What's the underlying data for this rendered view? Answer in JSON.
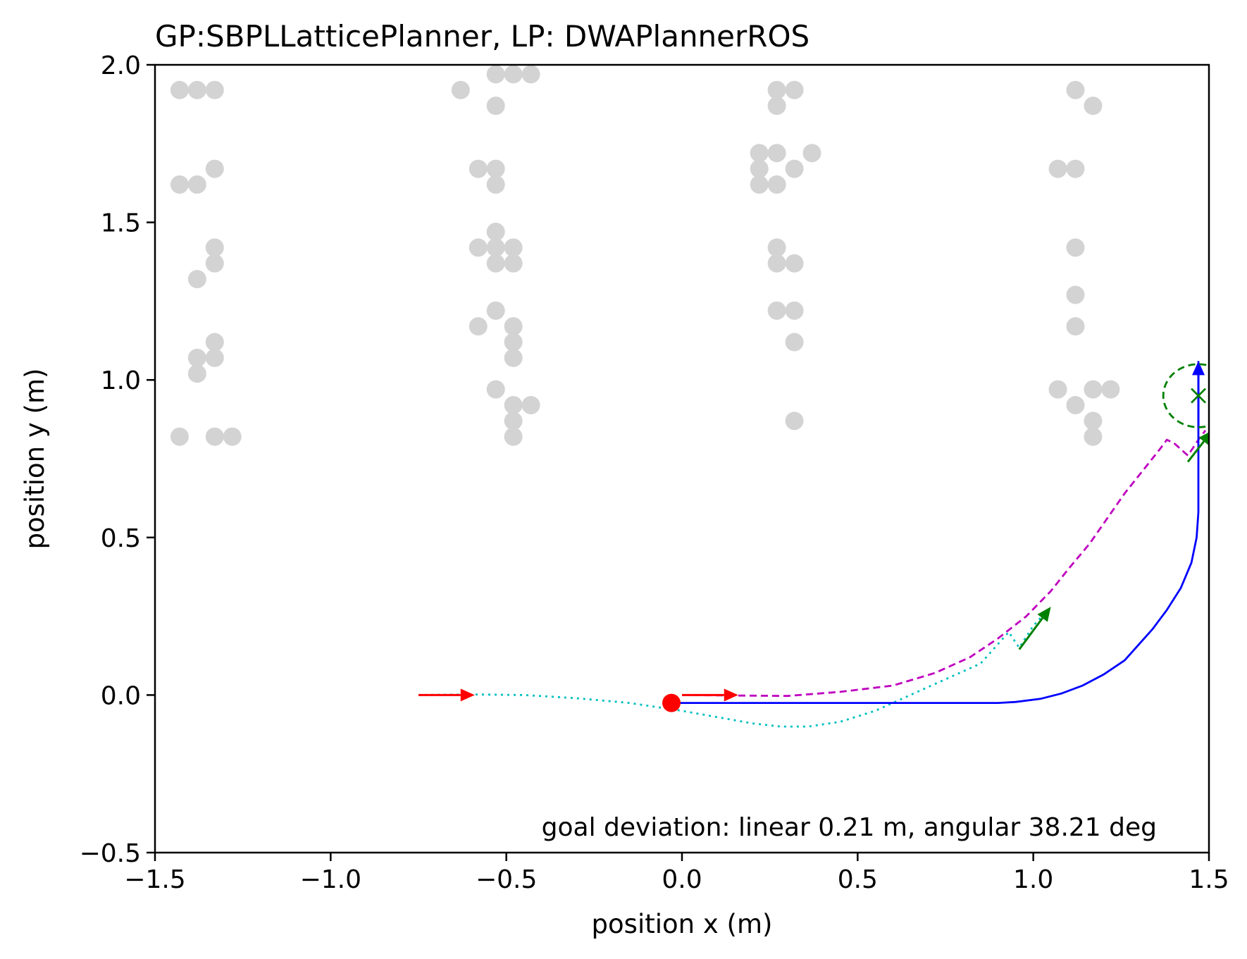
{
  "chart_data": {
    "type": "scatter",
    "title": "GP:SBPLLatticePlanner, LP: DWAPlannerROS",
    "xlabel": "position x (m)",
    "ylabel": "position y (m)",
    "xlim": [
      -1.5,
      1.5
    ],
    "ylim": [
      -0.5,
      2.0
    ],
    "xticks": [
      -1.5,
      -1.0,
      -0.5,
      0.0,
      0.5,
      1.0,
      1.5
    ],
    "yticks": [
      -0.5,
      0.0,
      0.5,
      1.0,
      1.5,
      2.0
    ],
    "xtick_labels": [
      "−1.5",
      "−1.0",
      "−0.5",
      "0.0",
      "0.5",
      "1.0",
      "1.5"
    ],
    "ytick_labels": [
      "−0.5",
      "0.0",
      "0.5",
      "1.0",
      "1.5",
      "2.0"
    ],
    "grid": false,
    "annotation": "goal deviation: linear 0.21 m, angular 38.21 deg",
    "colors": {
      "obstacles": "#d3d3d3",
      "robot_path": "#0000ff",
      "global_plan": "#bf00bf",
      "reference_path": "#00bfbf",
      "start_arrow": "#ff0000",
      "start_point": "#ff0000",
      "goal": "#008000"
    },
    "obstacles": [
      [
        -1.43,
        1.92
      ],
      [
        -1.38,
        1.92
      ],
      [
        -1.33,
        1.92
      ],
      [
        -1.43,
        1.62
      ],
      [
        -1.38,
        1.62
      ],
      [
        -1.33,
        1.67
      ],
      [
        -1.33,
        1.42
      ],
      [
        -1.33,
        1.37
      ],
      [
        -1.38,
        1.32
      ],
      [
        -1.33,
        1.12
      ],
      [
        -1.38,
        1.07
      ],
      [
        -1.33,
        1.07
      ],
      [
        -1.38,
        1.02
      ],
      [
        -1.43,
        0.82
      ],
      [
        -1.33,
        0.82
      ],
      [
        -1.28,
        0.82
      ],
      [
        -0.63,
        1.92
      ],
      [
        -0.53,
        1.97
      ],
      [
        -0.48,
        1.97
      ],
      [
        -0.43,
        1.97
      ],
      [
        -0.53,
        1.87
      ],
      [
        -0.58,
        1.67
      ],
      [
        -0.53,
        1.67
      ],
      [
        -0.53,
        1.62
      ],
      [
        -0.53,
        1.47
      ],
      [
        -0.58,
        1.42
      ],
      [
        -0.53,
        1.42
      ],
      [
        -0.48,
        1.42
      ],
      [
        -0.53,
        1.37
      ],
      [
        -0.48,
        1.37
      ],
      [
        -0.53,
        1.22
      ],
      [
        -0.58,
        1.17
      ],
      [
        -0.48,
        1.17
      ],
      [
        -0.48,
        1.12
      ],
      [
        -0.48,
        1.07
      ],
      [
        -0.53,
        0.97
      ],
      [
        -0.48,
        0.92
      ],
      [
        -0.43,
        0.92
      ],
      [
        -0.48,
        0.87
      ],
      [
        -0.48,
        0.82
      ],
      [
        0.27,
        1.92
      ],
      [
        0.32,
        1.92
      ],
      [
        0.27,
        1.87
      ],
      [
        0.22,
        1.72
      ],
      [
        0.27,
        1.72
      ],
      [
        0.37,
        1.72
      ],
      [
        0.22,
        1.67
      ],
      [
        0.32,
        1.67
      ],
      [
        0.22,
        1.62
      ],
      [
        0.27,
        1.62
      ],
      [
        0.27,
        1.42
      ],
      [
        0.27,
        1.37
      ],
      [
        0.32,
        1.37
      ],
      [
        0.27,
        1.22
      ],
      [
        0.32,
        1.22
      ],
      [
        0.32,
        1.12
      ],
      [
        0.32,
        0.87
      ],
      [
        1.12,
        1.92
      ],
      [
        1.17,
        1.87
      ],
      [
        1.07,
        1.67
      ],
      [
        1.12,
        1.67
      ],
      [
        1.12,
        1.42
      ],
      [
        1.12,
        1.27
      ],
      [
        1.12,
        1.17
      ],
      [
        1.07,
        0.97
      ],
      [
        1.17,
        0.97
      ],
      [
        1.22,
        0.97
      ],
      [
        1.12,
        0.92
      ],
      [
        1.17,
        0.87
      ],
      [
        1.17,
        0.82
      ]
    ],
    "robot_path": [
      [
        -0.03,
        -0.025
      ],
      [
        0.5,
        -0.025
      ],
      [
        0.9,
        -0.025
      ],
      [
        0.95,
        -0.022
      ],
      [
        1.02,
        -0.012
      ],
      [
        1.08,
        0.005
      ],
      [
        1.14,
        0.03
      ],
      [
        1.2,
        0.065
      ],
      [
        1.26,
        0.11
      ],
      [
        1.3,
        0.16
      ],
      [
        1.34,
        0.21
      ],
      [
        1.38,
        0.27
      ],
      [
        1.42,
        0.34
      ],
      [
        1.45,
        0.42
      ],
      [
        1.465,
        0.5
      ],
      [
        1.47,
        0.58
      ],
      [
        1.47,
        0.85
      ],
      [
        1.47,
        1.06
      ]
    ],
    "global_plan": [
      [
        0.0,
        0.0
      ],
      [
        0.3,
        -0.003
      ],
      [
        0.45,
        0.01
      ],
      [
        0.6,
        0.03
      ],
      [
        0.72,
        0.07
      ],
      [
        0.82,
        0.12
      ],
      [
        0.9,
        0.18
      ],
      [
        0.98,
        0.25
      ],
      [
        1.05,
        0.33
      ],
      [
        1.1,
        0.4
      ],
      [
        1.16,
        0.48
      ],
      [
        1.21,
        0.56
      ],
      [
        1.26,
        0.64
      ],
      [
        1.31,
        0.71
      ],
      [
        1.36,
        0.78
      ],
      [
        1.38,
        0.81
      ],
      [
        1.4,
        0.8
      ],
      [
        1.44,
        0.76
      ],
      [
        1.47,
        0.81
      ],
      [
        1.49,
        0.84
      ]
    ],
    "reference_path": [
      [
        -0.75,
        0.0
      ],
      [
        -0.6,
        0.002
      ],
      [
        -0.45,
        0.0
      ],
      [
        -0.3,
        -0.01
      ],
      [
        -0.15,
        -0.025
      ],
      [
        0.0,
        -0.05
      ],
      [
        0.1,
        -0.07
      ],
      [
        0.2,
        -0.09
      ],
      [
        0.28,
        -0.1
      ],
      [
        0.36,
        -0.1
      ],
      [
        0.45,
        -0.085
      ],
      [
        0.55,
        -0.05
      ],
      [
        0.65,
        0.0
      ],
      [
        0.75,
        0.05
      ],
      [
        0.85,
        0.1
      ],
      [
        0.93,
        0.2
      ],
      [
        0.96,
        0.15
      ],
      [
        1.0,
        0.22
      ],
      [
        1.05,
        0.28
      ]
    ],
    "start_point": [
      -0.03,
      -0.025
    ],
    "start_arrows": [
      {
        "x": -0.75,
        "y": 0.0,
        "dx": 0.16,
        "dy": 0.0
      },
      {
        "x": 0.0,
        "y": 0.0,
        "dx": 0.16,
        "dy": 0.0
      }
    ],
    "robot_heading_arrow": {
      "x": 1.47,
      "y": 0.85,
      "dx": 0.0,
      "dy": 0.21
    },
    "goal": {
      "x": 1.47,
      "y": 0.95,
      "tolerance_radius": 0.1
    },
    "goal_heading_arrows": [
      {
        "x": 0.96,
        "y": 0.145,
        "dx": 0.09,
        "dy": 0.135
      },
      {
        "x": 1.44,
        "y": 0.74,
        "dx": 0.07,
        "dy": 0.1
      }
    ]
  }
}
